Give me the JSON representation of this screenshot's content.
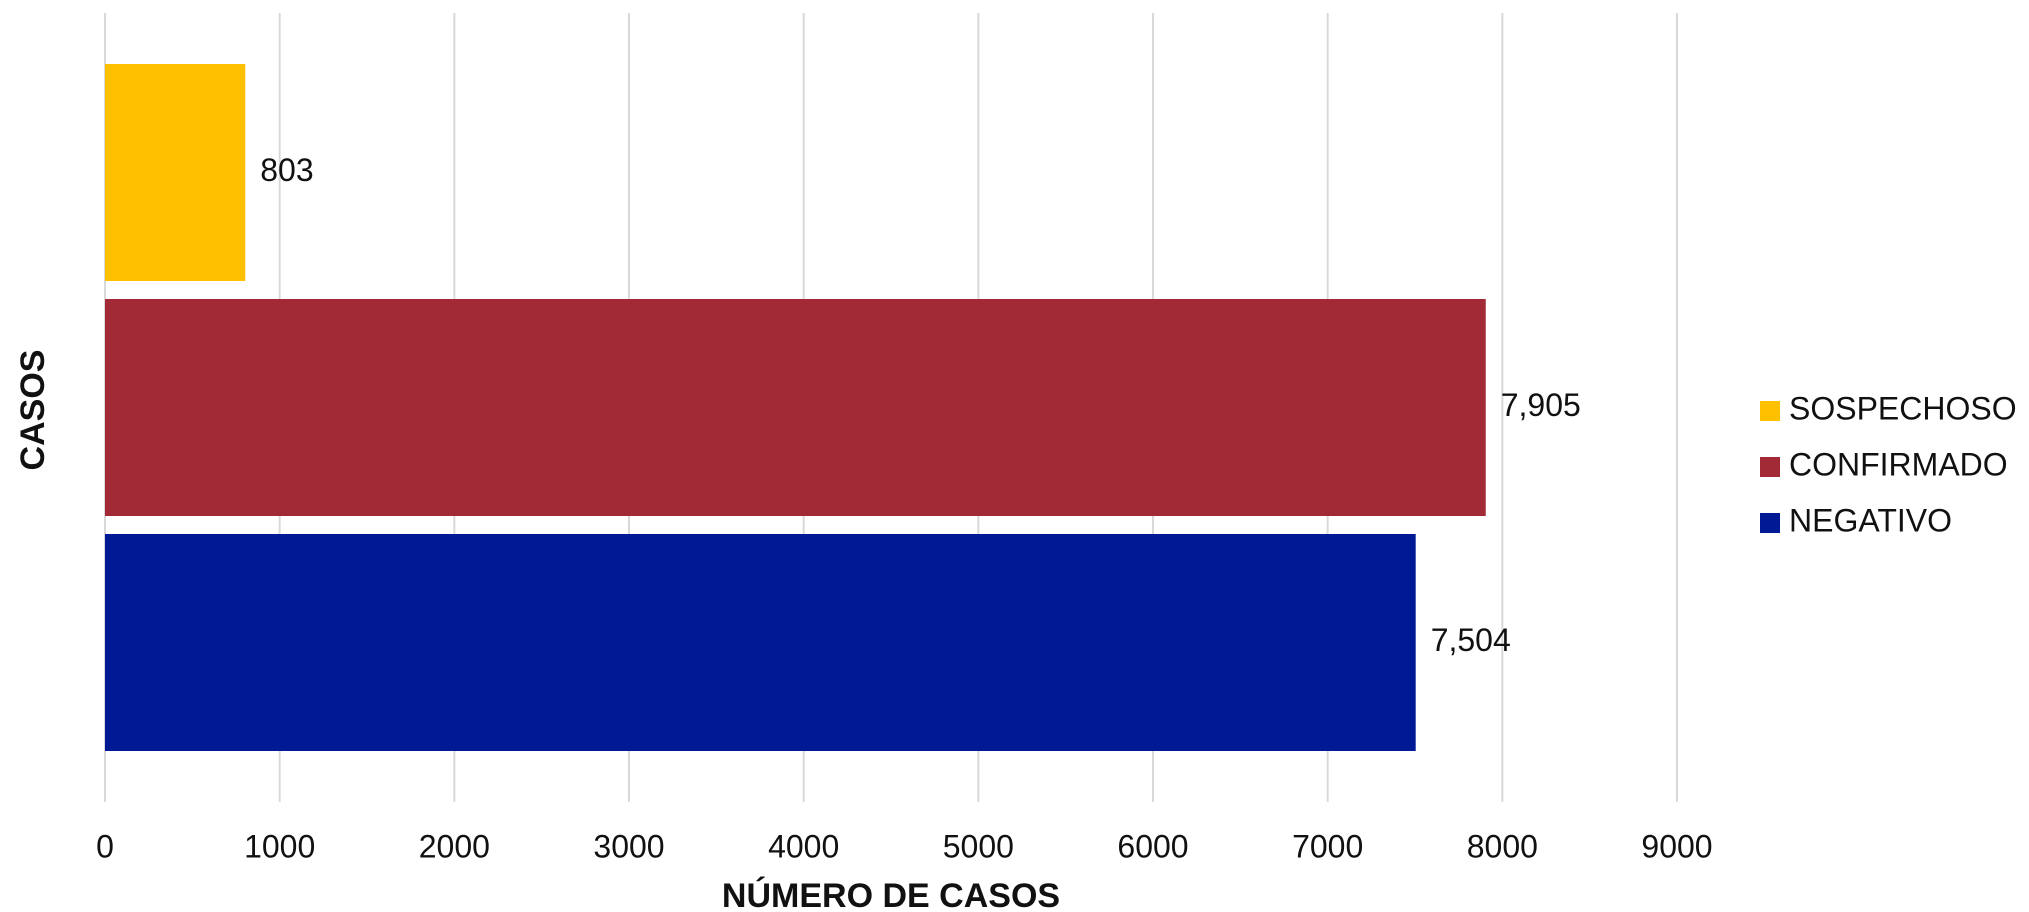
{
  "chart_data": {
    "type": "bar",
    "orientation": "horizontal",
    "xlabel": "NÚMERO DE CASOS",
    "ylabel": "CASOS",
    "categories": [
      null
    ],
    "series": [
      {
        "name": "SOSPECHOSO",
        "color": "#FFC000",
        "values": [
          803
        ],
        "value_labels": [
          "803"
        ]
      },
      {
        "name": "CONFIRMADO",
        "color": "#A12A36",
        "values": [
          7905
        ],
        "value_labels": [
          "7,905"
        ]
      },
      {
        "name": "NEGATIVO",
        "color": "#001A96",
        "values": [
          7504
        ],
        "value_labels": [
          "7,504"
        ]
      }
    ],
    "xlim": [
      0,
      9000
    ],
    "xticks": [
      0,
      1000,
      2000,
      3000,
      4000,
      5000,
      6000,
      7000,
      8000,
      9000
    ],
    "grid": true,
    "legend": "right"
  }
}
